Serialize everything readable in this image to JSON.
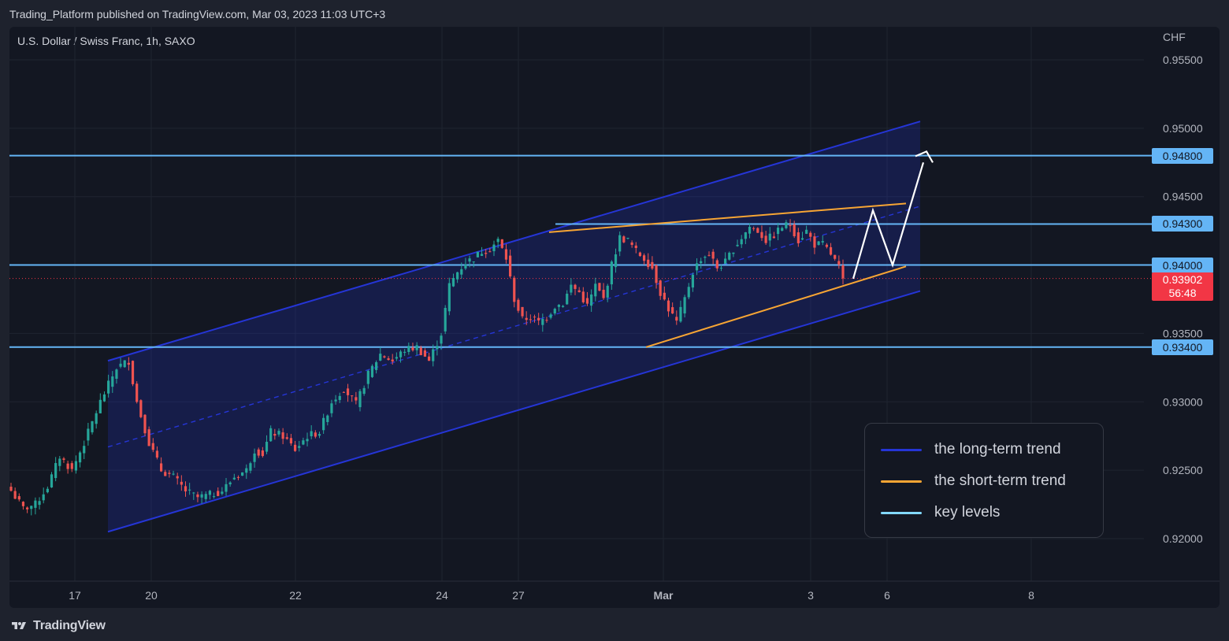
{
  "header": {
    "published_by": "Trading_Platform published on TradingView.com, Mar 03, 2023 11:03 UTC+3",
    "symbol": "U.S. Dollar / Swiss Franc, 1h, SAXO",
    "brand": "TradingView"
  },
  "axis": {
    "currency": "CHF",
    "price_ticks": [
      "0.95500",
      "0.95000",
      "0.94500",
      "0.93500",
      "0.93000",
      "0.92500",
      "0.92000"
    ],
    "date_ticks": [
      "17",
      "20",
      "22",
      "24",
      "27",
      "Mar",
      "3",
      "6",
      "8"
    ]
  },
  "colors": {
    "background": "#131722",
    "up": "#26a69a",
    "down": "#ef5350",
    "long_trend": "#2535d6",
    "short_trend": "#f7a534",
    "key_level": "#64b5f6",
    "price_tag": "#f23645",
    "arrow": "#ffffff"
  },
  "levels": [
    {
      "label": "0.94800",
      "value": 0.948
    },
    {
      "label": "0.94300",
      "value": 0.943
    },
    {
      "label": "0.94000",
      "value": 0.94
    },
    {
      "label": "0.93400",
      "value": 0.934
    }
  ],
  "current_price": {
    "label": "0.93902",
    "countdown": "56:48",
    "value": 0.93902
  },
  "legend": {
    "items": [
      {
        "label": "the long-term trend",
        "color": "#2535d6"
      },
      {
        "label": "the short-term trend",
        "color": "#f7a534"
      },
      {
        "label": "key levels",
        "color": "#82d8ff"
      }
    ]
  },
  "chart_data": {
    "type": "candlestick",
    "title": "U.S. Dollar / Swiss Franc, 1h, SAXO",
    "ylabel": "CHF",
    "ylim": [
      0.9175,
      0.9565
    ],
    "x_ticks": [
      "17",
      "20",
      "22",
      "24",
      "27",
      "Mar",
      "3",
      "6",
      "8"
    ],
    "close_path": [
      [
        0,
        0.9235
      ],
      [
        3,
        0.9222
      ],
      [
        6,
        0.9225
      ],
      [
        9,
        0.9238
      ],
      [
        12,
        0.926
      ],
      [
        15,
        0.925
      ],
      [
        18,
        0.927
      ],
      [
        22,
        0.93
      ],
      [
        26,
        0.9325
      ],
      [
        29,
        0.933
      ],
      [
        31,
        0.93
      ],
      [
        34,
        0.927
      ],
      [
        37,
        0.925
      ],
      [
        40,
        0.9245
      ],
      [
        43,
        0.9235
      ],
      [
        46,
        0.923
      ],
      [
        49,
        0.9232
      ],
      [
        52,
        0.9235
      ],
      [
        55,
        0.9245
      ],
      [
        58,
        0.925
      ],
      [
        60,
        0.9265
      ],
      [
        62,
        0.9262
      ],
      [
        64,
        0.9278
      ],
      [
        67,
        0.9275
      ],
      [
        70,
        0.9265
      ],
      [
        73,
        0.9275
      ],
      [
        76,
        0.9278
      ],
      [
        79,
        0.93
      ],
      [
        82,
        0.931
      ],
      [
        85,
        0.9298
      ],
      [
        88,
        0.932
      ],
      [
        91,
        0.9335
      ],
      [
        94,
        0.933
      ],
      [
        97,
        0.9338
      ],
      [
        100,
        0.934
      ],
      [
        103,
        0.933
      ],
      [
        106,
        0.935
      ],
      [
        108,
        0.9385
      ],
      [
        110,
        0.9395
      ],
      [
        112,
        0.9402
      ],
      [
        114,
        0.9405
      ],
      [
        116,
        0.941
      ],
      [
        118,
        0.9412
      ],
      [
        120,
        0.9418
      ],
      [
        122,
        0.9405
      ],
      [
        124,
        0.9375
      ],
      [
        126,
        0.936
      ],
      [
        128,
        0.9362
      ],
      [
        130,
        0.9358
      ],
      [
        132,
        0.9362
      ],
      [
        134,
        0.937
      ],
      [
        136,
        0.9372
      ],
      [
        138,
        0.9385
      ],
      [
        140,
        0.938
      ],
      [
        142,
        0.937
      ],
      [
        144,
        0.9385
      ],
      [
        146,
        0.9375
      ],
      [
        148,
        0.94
      ],
      [
        150,
        0.942
      ],
      [
        152,
        0.9418
      ],
      [
        154,
        0.941
      ],
      [
        156,
        0.9405
      ],
      [
        158,
        0.9398
      ],
      [
        160,
        0.938
      ],
      [
        162,
        0.9368
      ],
      [
        164,
        0.9358
      ],
      [
        166,
        0.9375
      ],
      [
        168,
        0.9395
      ],
      [
        170,
        0.9405
      ],
      [
        172,
        0.9408
      ],
      [
        174,
        0.9398
      ],
      [
        176,
        0.9402
      ],
      [
        178,
        0.9412
      ],
      [
        180,
        0.942
      ],
      [
        182,
        0.9428
      ],
      [
        184,
        0.9425
      ],
      [
        186,
        0.9418
      ],
      [
        188,
        0.9422
      ],
      [
        190,
        0.9428
      ],
      [
        192,
        0.943
      ],
      [
        194,
        0.9418
      ],
      [
        196,
        0.9425
      ],
      [
        198,
        0.9415
      ],
      [
        200,
        0.9415
      ],
      [
        202,
        0.9408
      ],
      [
        204,
        0.9398
      ],
      [
        205,
        0.93902
      ]
    ]
  }
}
